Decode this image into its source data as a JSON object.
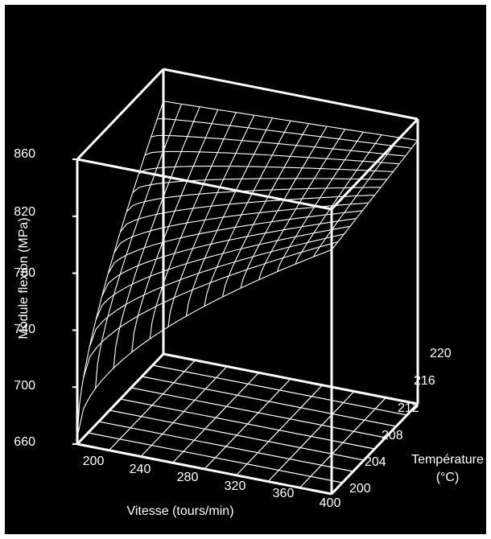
{
  "chart_data": {
    "type": "surface-3d",
    "xlabel": "Vitesse (tours/min)",
    "ylabel_line1": "Température",
    "ylabel_line2": "(°C)",
    "zlabel": "Module flexion (MPa)",
    "x_ticks": [
      "200",
      "240",
      "280",
      "320",
      "360",
      "400"
    ],
    "y_ticks": [
      "200",
      "204",
      "208",
      "212",
      "216",
      "220"
    ],
    "z_ticks": [
      "660",
      "700",
      "740",
      "780",
      "820",
      "860"
    ],
    "xlim": [
      200,
      400
    ],
    "ylim": [
      200,
      220
    ],
    "zlim": [
      660,
      860
    ],
    "surface": {
      "description_values": "approximate modulus at grid corners",
      "x": [
        200,
        400
      ],
      "y": [
        200,
        220
      ],
      "z": [
        [
          665,
          820
        ],
        [
          800,
          845
        ]
      ]
    },
    "colors": {
      "background": "#000000",
      "lines": "#ffffff"
    }
  }
}
